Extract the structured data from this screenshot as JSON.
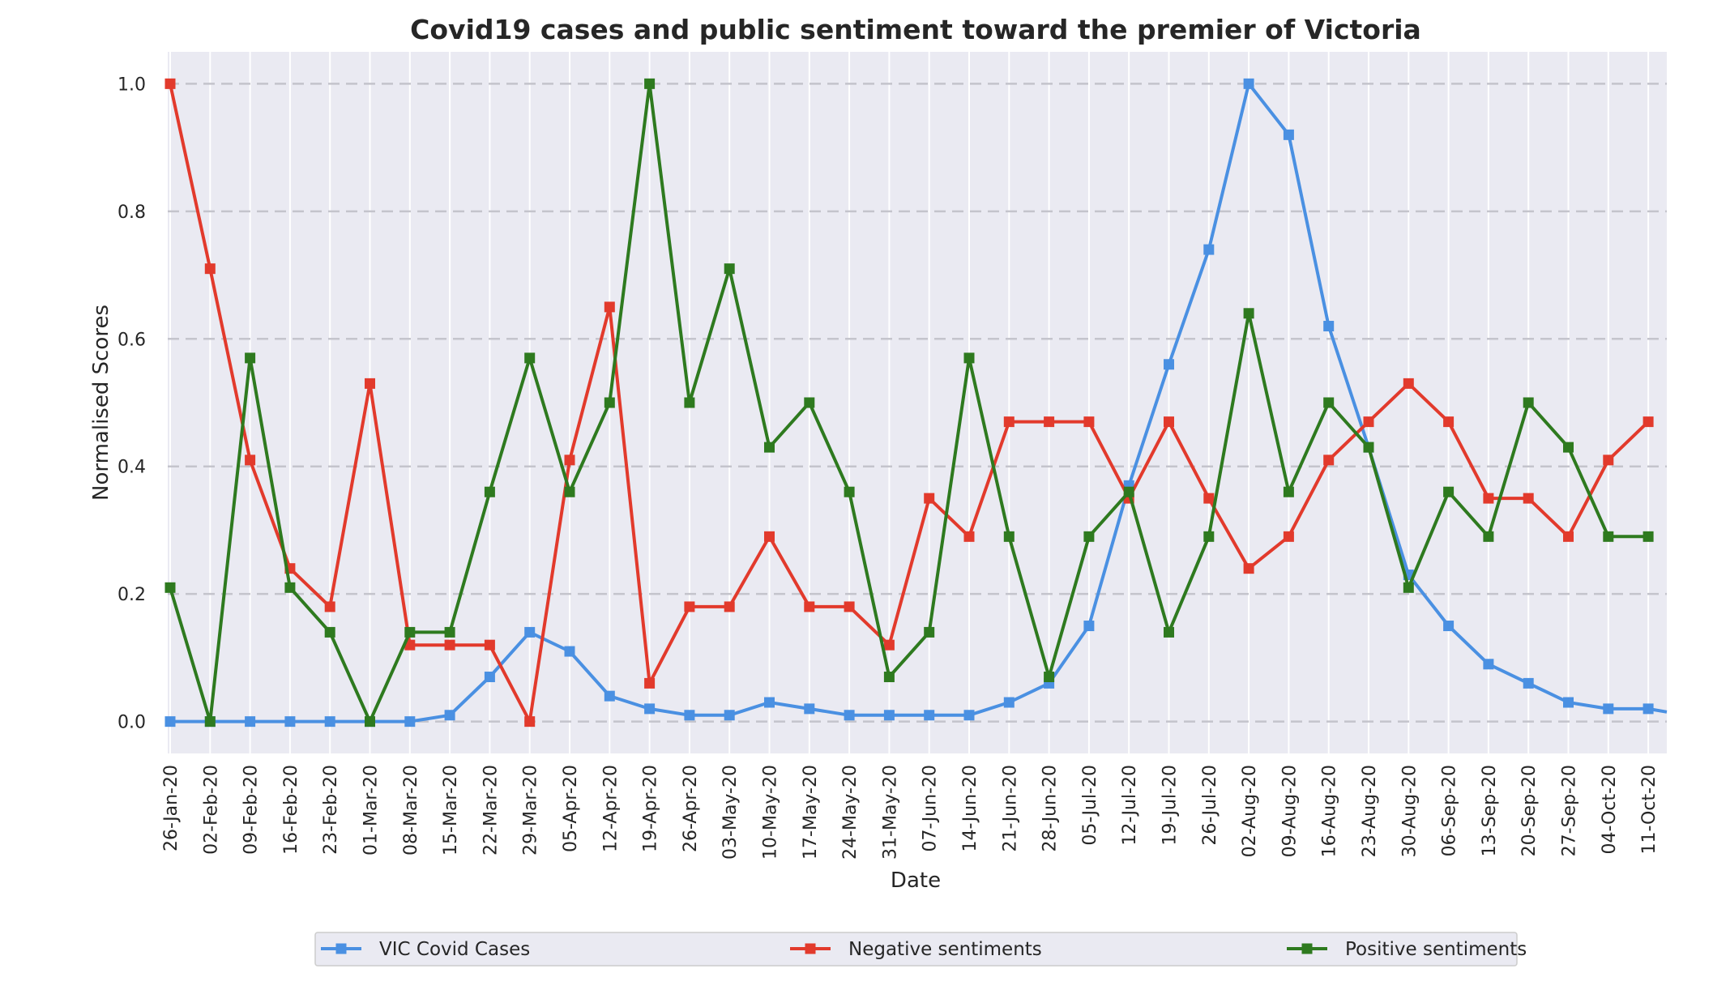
{
  "chart_data": {
    "type": "line",
    "title": "Covid19 cases and public sentiment toward the premier of Victoria",
    "xlabel": "Date",
    "ylabel": "Normalised Scores",
    "ylim": [
      -0.05,
      1.05
    ],
    "yticks": [
      "0.0",
      "0.2",
      "0.4",
      "0.6",
      "0.8",
      "1.0"
    ],
    "grid": true,
    "legend_position": "bottom-center",
    "categories": [
      "26-Jan-20",
      "02-Feb-20",
      "09-Feb-20",
      "16-Feb-20",
      "23-Feb-20",
      "01-Mar-20",
      "08-Mar-20",
      "15-Mar-20",
      "22-Mar-20",
      "29-Mar-20",
      "05-Apr-20",
      "12-Apr-20",
      "19-Apr-20",
      "26-Apr-20",
      "03-May-20",
      "10-May-20",
      "17-May-20",
      "24-May-20",
      "31-May-20",
      "07-Jun-20",
      "14-Jun-20",
      "21-Jun-20",
      "28-Jun-20",
      "05-Jul-20",
      "12-Jul-20",
      "19-Jul-20",
      "26-Jul-20",
      "02-Aug-20",
      "09-Aug-20",
      "16-Aug-20",
      "23-Aug-20",
      "30-Aug-20",
      "06-Sep-20",
      "13-Sep-20",
      "20-Sep-20",
      "27-Sep-20",
      "04-Oct-20",
      "11-Oct-20"
    ],
    "series": [
      {
        "name": "VIC Covid Cases",
        "color": "#4a90e2",
        "values": [
          0.0,
          0.0,
          0.0,
          0.0,
          0.0,
          0.0,
          0.0,
          0.01,
          0.07,
          0.14,
          0.11,
          0.04,
          0.02,
          0.01,
          0.01,
          0.03,
          0.02,
          0.01,
          0.01,
          0.01,
          0.01,
          0.03,
          0.06,
          0.15,
          0.37,
          0.56,
          0.74,
          1.0,
          0.92,
          0.62,
          0.43,
          0.23,
          0.15,
          0.09,
          0.06,
          0.03,
          0.02,
          0.02
        ],
        "trailing_value": 0.015
      },
      {
        "name": "Negative sentiments",
        "color": "#e23a2c",
        "values": [
          1.0,
          0.71,
          0.41,
          0.24,
          0.18,
          0.53,
          0.12,
          0.12,
          0.12,
          0.0,
          0.41,
          0.65,
          0.06,
          0.18,
          0.18,
          0.29,
          0.18,
          0.18,
          0.12,
          0.35,
          0.29,
          0.47,
          0.47,
          0.47,
          0.35,
          0.47,
          0.35,
          0.24,
          0.29,
          0.41,
          0.47,
          0.53,
          0.47,
          0.35,
          0.35,
          0.29,
          0.41,
          0.47
        ]
      },
      {
        "name": "Positive sentiments",
        "color": "#2e7a1f",
        "values": [
          0.21,
          0.0,
          0.57,
          0.21,
          0.14,
          0.0,
          0.14,
          0.14,
          0.36,
          0.57,
          0.36,
          0.5,
          1.0,
          0.5,
          0.71,
          0.43,
          0.5,
          0.36,
          0.07,
          0.14,
          0.57,
          0.29,
          0.07,
          0.29,
          0.36,
          0.14,
          0.29,
          0.64,
          0.36,
          0.5,
          0.43,
          0.21,
          0.36,
          0.29,
          0.5,
          0.43,
          0.29,
          0.29
        ]
      }
    ]
  }
}
